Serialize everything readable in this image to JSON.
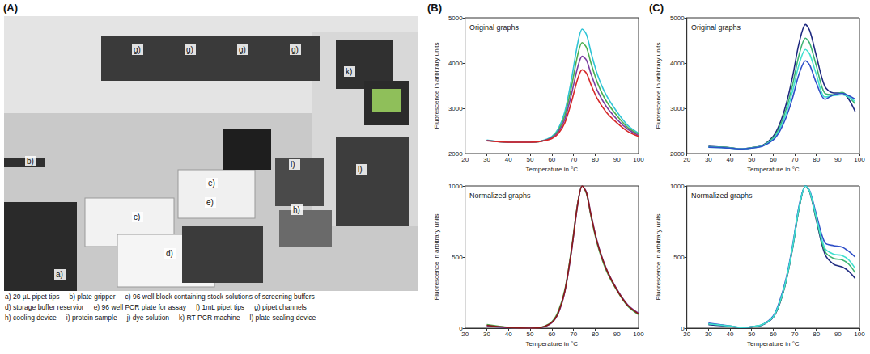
{
  "panel_a": {
    "label": "(A)",
    "markers": [
      "g)",
      "g)",
      "g)",
      "g)",
      "b)",
      "k)",
      "i)",
      "h)",
      "l)",
      "c)",
      "e)",
      "e)",
      "d)",
      "a)"
    ],
    "caption_lines": [
      [
        "a) 20 µL pipet tips",
        "b) plate gripper",
        "c) 96 well block containing stock solutions of screening buffers"
      ],
      [
        "d) storage buffer reservior",
        "e) 96 well PCR plate for assay",
        "f) 1mL pipet tips",
        "g) pipet channels"
      ],
      [
        "h) cooling device",
        "i) protein sample",
        "j) dye solution",
        "k) RT-PCR machine",
        "l) plate sealing device"
      ]
    ]
  },
  "chart_data": [
    {
      "panel": "(B)",
      "type": "line",
      "annotations": [
        "Original graphs"
      ],
      "x_label": "Temperature in °C",
      "y_label": "Fluorescence in arbitrary units",
      "xlim": [
        20,
        100
      ],
      "xticks": [
        20,
        30,
        40,
        50,
        60,
        70,
        80,
        90,
        100
      ],
      "ylim": [
        2000,
        5000
      ],
      "yticks": [
        2000,
        3000,
        4000,
        5000
      ],
      "grid": false,
      "x": [
        30,
        40,
        50,
        55,
        60,
        63,
        66,
        69,
        72,
        74,
        76,
        78,
        81,
        85,
        90,
        95,
        100
      ],
      "series": [
        {
          "color": "#2ec4d6",
          "values": [
            2300,
            2250,
            2250,
            2275,
            2375,
            2550,
            2925,
            3625,
            4450,
            4750,
            4625,
            4250,
            3750,
            3300,
            2925,
            2625,
            2450
          ]
        },
        {
          "color": "#4caf50",
          "values": [
            2290,
            2250,
            2250,
            2270,
            2360,
            2510,
            2840,
            3460,
            4190,
            4450,
            4340,
            4010,
            3570,
            3170,
            2840,
            2580,
            2430
          ]
        },
        {
          "color": "#7b3fa0",
          "values": [
            2290,
            2250,
            2250,
            2270,
            2350,
            2480,
            2760,
            3300,
            3920,
            4150,
            4060,
            3770,
            3390,
            3050,
            2760,
            2540,
            2400
          ]
        },
        {
          "color": "#d62728",
          "values": [
            2280,
            2250,
            2250,
            2270,
            2330,
            2440,
            2680,
            3130,
            3660,
            3850,
            3770,
            3530,
            3210,
            2920,
            2680,
            2490,
            2380
          ]
        }
      ]
    },
    {
      "type": "line",
      "annotations": [
        "Normalized graphs"
      ],
      "x_label": "Temperature in °C",
      "y_label": "Fluorescence in arbitrary units",
      "xlim": [
        20,
        100
      ],
      "xticks": [
        20,
        30,
        40,
        50,
        60,
        70,
        80,
        90,
        100
      ],
      "ylim": [
        0,
        1000
      ],
      "yticks": [
        0,
        500,
        1000
      ],
      "grid": false,
      "x": [
        30,
        40,
        50,
        55,
        60,
        63,
        66,
        69,
        72,
        74,
        76,
        78,
        81,
        85,
        90,
        95,
        100
      ],
      "series": [
        {
          "color": "#4caf50",
          "values": [
            25,
            5,
            0,
            6,
            45,
            120,
            270,
            550,
            885,
            1000,
            945,
            790,
            590,
            410,
            265,
            155,
            95
          ]
        },
        {
          "color": "#7b3fa0",
          "values": [
            15,
            3,
            0,
            4,
            38,
            105,
            255,
            530,
            875,
            1000,
            955,
            805,
            605,
            425,
            275,
            165,
            105
          ]
        },
        {
          "color": "#8b1a1a",
          "values": [
            20,
            5,
            0,
            5,
            40,
            110,
            260,
            540,
            880,
            1000,
            950,
            800,
            600,
            420,
            270,
            160,
            100
          ]
        }
      ]
    },
    {
      "panel": "(C)",
      "type": "line",
      "annotations": [
        "Original graphs"
      ],
      "x_label": "Temperature in °C",
      "y_label": "Fluorescence in arbitrary units",
      "xlim": [
        20,
        100
      ],
      "xticks": [
        20,
        30,
        40,
        50,
        60,
        70,
        80,
        90,
        100
      ],
      "ylim": [
        2000,
        5000
      ],
      "yticks": [
        2000,
        3000,
        4000,
        5000
      ],
      "grid": false,
      "x": [
        30,
        40,
        45,
        50,
        55,
        60,
        63,
        66,
        69,
        72,
        75,
        77,
        80,
        84,
        88,
        92,
        95,
        98
      ],
      "series": [
        {
          "color": "#1f2a80",
          "values": [
            2160,
            2130,
            2100,
            2130,
            2180,
            2380,
            2650,
            3090,
            3700,
            4440,
            4850,
            4710,
            4160,
            3480,
            3340,
            3340,
            3200,
            2930
          ]
        },
        {
          "color": "#3cb371",
          "values": [
            2150,
            2130,
            2100,
            2130,
            2170,
            2350,
            2590,
            2980,
            3520,
            4180,
            4550,
            4430,
            3940,
            3330,
            3300,
            3350,
            3250,
            3100
          ]
        },
        {
          "color": "#40e0d0",
          "values": [
            2140,
            2120,
            2100,
            2120,
            2170,
            2320,
            2540,
            2890,
            3380,
            3970,
            4300,
            4190,
            3750,
            3250,
            3280,
            3300,
            3250,
            3150
          ]
        },
        {
          "color": "#3050c8",
          "values": [
            2140,
            2120,
            2100,
            2120,
            2160,
            2300,
            2490,
            2800,
            3230,
            3760,
            4050,
            3950,
            3560,
            3200,
            3300,
            3330,
            3280,
            3200
          ]
        }
      ]
    },
    {
      "type": "line",
      "annotations": [
        "Normalized graphs"
      ],
      "x_label": "Temperature in °C",
      "y_label": "Fluorescence in arbitrary units",
      "xlim": [
        20,
        100
      ],
      "xticks": [
        20,
        30,
        40,
        50,
        60,
        70,
        80,
        90,
        100
      ],
      "ylim": [
        0,
        1000
      ],
      "yticks": [
        0,
        500,
        1000
      ],
      "grid": false,
      "x": [
        30,
        40,
        45,
        50,
        55,
        60,
        63,
        66,
        69,
        72,
        75,
        77,
        80,
        84,
        88,
        92,
        95,
        98
      ],
      "series": [
        {
          "color": "#1f2a80",
          "values": [
            25,
            12,
            3,
            8,
            22,
            75,
            170,
            330,
            560,
            840,
            1000,
            955,
            760,
            520,
            450,
            430,
            400,
            350
          ]
        },
        {
          "color": "#3cb371",
          "values": [
            30,
            14,
            4,
            9,
            24,
            80,
            175,
            335,
            565,
            845,
            1000,
            958,
            770,
            540,
            490,
            480,
            450,
            390
          ]
        },
        {
          "color": "#3050c8",
          "values": [
            35,
            15,
            5,
            10,
            25,
            85,
            190,
            350,
            580,
            860,
            1000,
            965,
            800,
            600,
            580,
            570,
            540,
            500
          ]
        },
        {
          "color": "#40e0d0",
          "values": [
            30,
            15,
            5,
            10,
            25,
            80,
            180,
            340,
            570,
            850,
            1000,
            960,
            780,
            560,
            520,
            510,
            480,
            420
          ]
        }
      ]
    }
  ]
}
